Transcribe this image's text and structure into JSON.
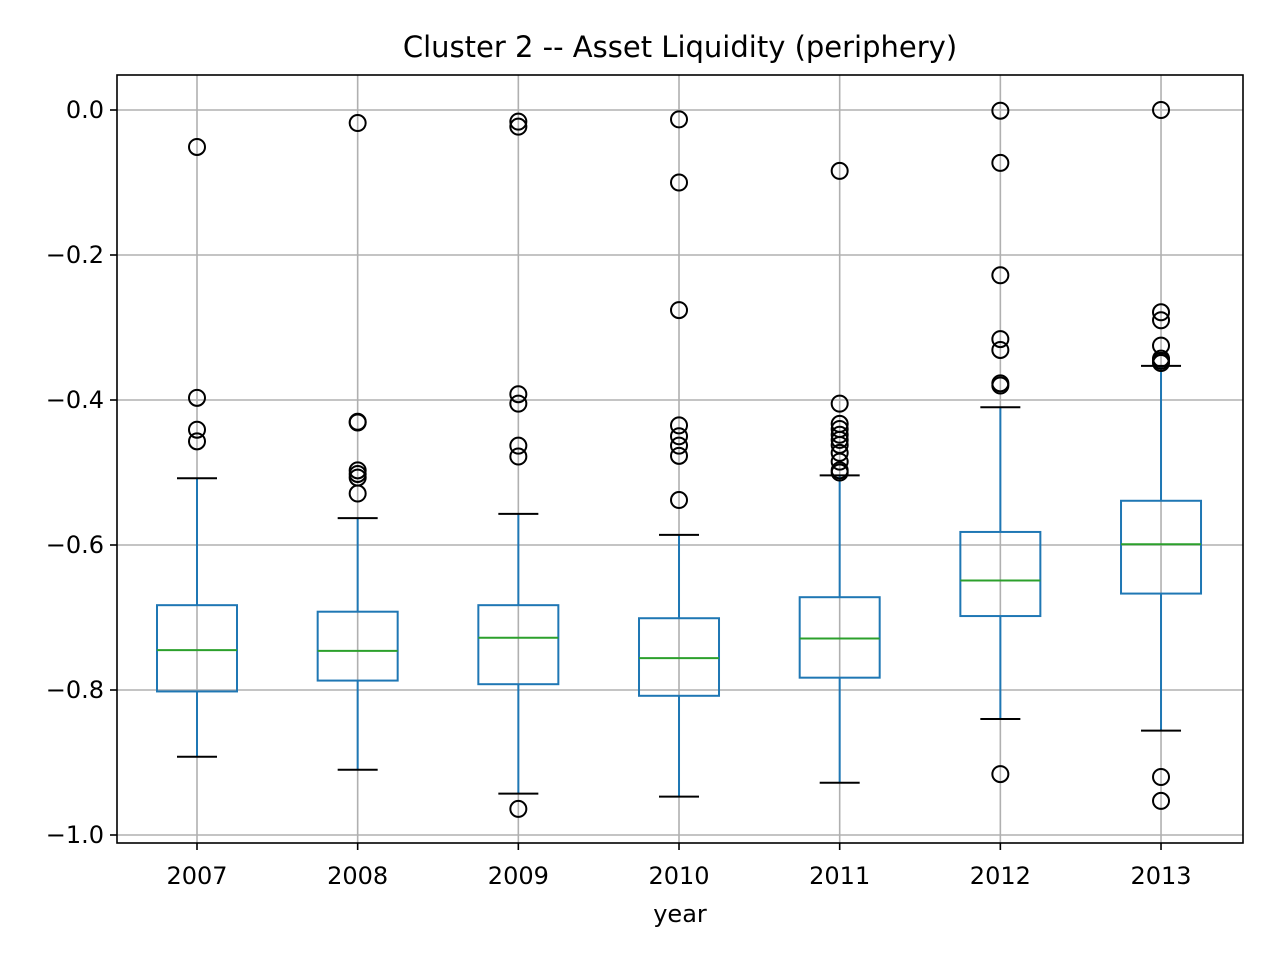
{
  "chart_data": {
    "type": "box",
    "title": "Cluster 2 -- Asset Liquidity (periphery)",
    "xlabel": "year",
    "ylabel": "",
    "categories": [
      "2007",
      "2008",
      "2009",
      "2010",
      "2011",
      "2012",
      "2013"
    ],
    "ylim": [
      -1.01,
      0.05
    ],
    "yticks": [
      0.0,
      -0.2,
      -0.4,
      -0.6,
      -0.8,
      -1.0
    ],
    "ytick_labels": [
      "0.0",
      "−0.2",
      "−0.4",
      "−0.6",
      "−0.8",
      "−1.0"
    ],
    "grid": true,
    "colors": {
      "box": "#1f77b4",
      "median": "#2ca02c",
      "caps": "#000000",
      "fliers": "#000000",
      "grid": "#b0b0b0"
    },
    "boxes": [
      {
        "year": "2007",
        "whisker_low": -0.892,
        "q1": -0.802,
        "median": -0.745,
        "q3": -0.683,
        "whisker_high": -0.508,
        "outliers": [
          -0.051,
          -0.397,
          -0.441,
          -0.457
        ]
      },
      {
        "year": "2008",
        "whisker_low": -0.91,
        "q1": -0.787,
        "median": -0.746,
        "q3": -0.692,
        "whisker_high": -0.563,
        "outliers": [
          -0.018,
          -0.43,
          -0.431,
          -0.497,
          -0.502,
          -0.507,
          -0.529
        ]
      },
      {
        "year": "2009",
        "whisker_low": -0.943,
        "q1": -0.792,
        "median": -0.728,
        "q3": -0.683,
        "whisker_high": -0.557,
        "outliers": [
          -0.016,
          -0.023,
          -0.392,
          -0.405,
          -0.463,
          -0.478,
          -0.964
        ]
      },
      {
        "year": "2010",
        "whisker_low": -0.947,
        "q1": -0.808,
        "median": -0.756,
        "q3": -0.701,
        "whisker_high": -0.586,
        "outliers": [
          -0.013,
          -0.1,
          -0.276,
          -0.435,
          -0.45,
          -0.463,
          -0.477,
          -0.538
        ]
      },
      {
        "year": "2011",
        "whisker_low": -0.928,
        "q1": -0.783,
        "median": -0.729,
        "q3": -0.672,
        "whisker_high": -0.504,
        "outliers": [
          -0.084,
          -0.405,
          -0.433,
          -0.44,
          -0.448,
          -0.455,
          -0.462,
          -0.473,
          -0.485,
          -0.497,
          -0.5
        ]
      },
      {
        "year": "2012",
        "whisker_low": -0.84,
        "q1": -0.698,
        "median": -0.649,
        "q3": -0.582,
        "whisker_high": -0.41,
        "outliers": [
          -0.001,
          -0.073,
          -0.228,
          -0.316,
          -0.331,
          -0.377,
          -0.38,
          -0.916
        ]
      },
      {
        "year": "2013",
        "whisker_low": -0.856,
        "q1": -0.667,
        "median": -0.599,
        "q3": -0.539,
        "whisker_high": -0.353,
        "outliers": [
          0.0,
          -0.279,
          -0.29,
          -0.325,
          -0.343,
          -0.346,
          -0.349,
          -0.92,
          -0.953
        ]
      }
    ]
  }
}
